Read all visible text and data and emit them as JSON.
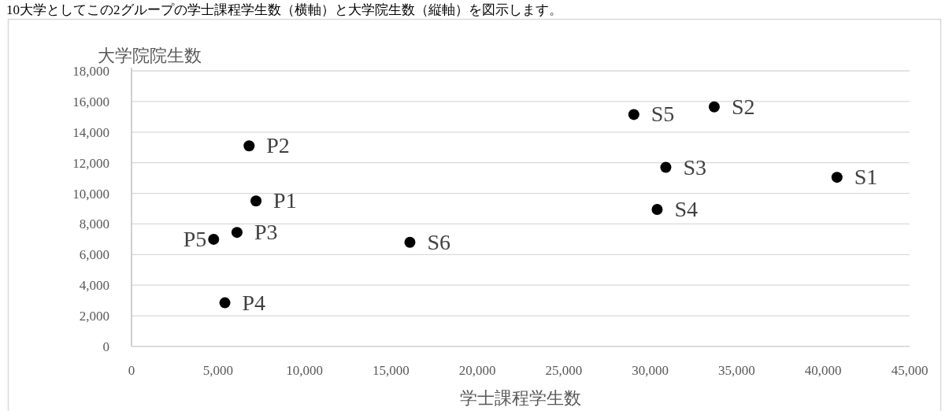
{
  "chart_data": {
    "type": "scatter",
    "title": "10大学としてこの2グループの学士課程学生数（横軸）と大学院生数（縦軸）を図示します。",
    "xlabel": "学士課程学生数",
    "ylabel": "大学院院生数",
    "xlim": [
      0,
      45000
    ],
    "xticks": [
      {
        "value": 0,
        "label": "0"
      },
      {
        "value": 5000,
        "label": "5,000"
      },
      {
        "value": 10000,
        "label": "10,000"
      },
      {
        "value": 15000,
        "label": "15,000"
      },
      {
        "value": 20000,
        "label": "20,000"
      },
      {
        "value": 25000,
        "label": "25,000"
      },
      {
        "value": 30000,
        "label": "30,000"
      },
      {
        "value": 35000,
        "label": "35,000"
      },
      {
        "value": 40000,
        "label": "40,000"
      },
      {
        "value": 45000,
        "label": "45,000"
      }
    ],
    "ylim": [
      0,
      18000
    ],
    "yticks": [
      {
        "value": 0,
        "label": "0"
      },
      {
        "value": 2000,
        "label": "2,000"
      },
      {
        "value": 4000,
        "label": "4,000"
      },
      {
        "value": 6000,
        "label": "6,000"
      },
      {
        "value": 8000,
        "label": "8,000"
      },
      {
        "value": 10000,
        "label": "10,000"
      },
      {
        "value": 12000,
        "label": "12,000"
      },
      {
        "value": 14000,
        "label": "14,000"
      },
      {
        "value": 16000,
        "label": "16,000"
      },
      {
        "value": 18000,
        "label": "18,000"
      }
    ],
    "grid": "y",
    "marker": "circle",
    "series": [
      {
        "name": "P2",
        "color": "#000000",
        "x": [
          6800
        ],
        "values": [
          13100
        ]
      },
      {
        "name": "P1",
        "color": "#000000",
        "x": [
          7200
        ],
        "values": [
          9500
        ]
      },
      {
        "name": "P3",
        "color": "#000000",
        "x": [
          6100
        ],
        "values": [
          7450
        ]
      },
      {
        "name": "P5",
        "color": "#000000",
        "x": [
          4750
        ],
        "values": [
          7000
        ]
      },
      {
        "name": "P4",
        "color": "#000000",
        "x": [
          5400
        ],
        "values": [
          2850
        ]
      },
      {
        "name": "S6",
        "color": "#000000",
        "x": [
          16100
        ],
        "values": [
          6800
        ]
      },
      {
        "name": "S5",
        "color": "#000000",
        "x": [
          29050
        ],
        "values": [
          15150
        ]
      },
      {
        "name": "S2",
        "color": "#000000",
        "x": [
          33700
        ],
        "values": [
          15650
        ]
      },
      {
        "name": "S3",
        "color": "#000000",
        "x": [
          30900
        ],
        "values": [
          11700
        ]
      },
      {
        "name": "S4",
        "color": "#000000",
        "x": [
          30400
        ],
        "values": [
          8950
        ]
      },
      {
        "name": "S1",
        "color": "#000000",
        "x": [
          40800
        ],
        "values": [
          11050
        ]
      }
    ]
  }
}
